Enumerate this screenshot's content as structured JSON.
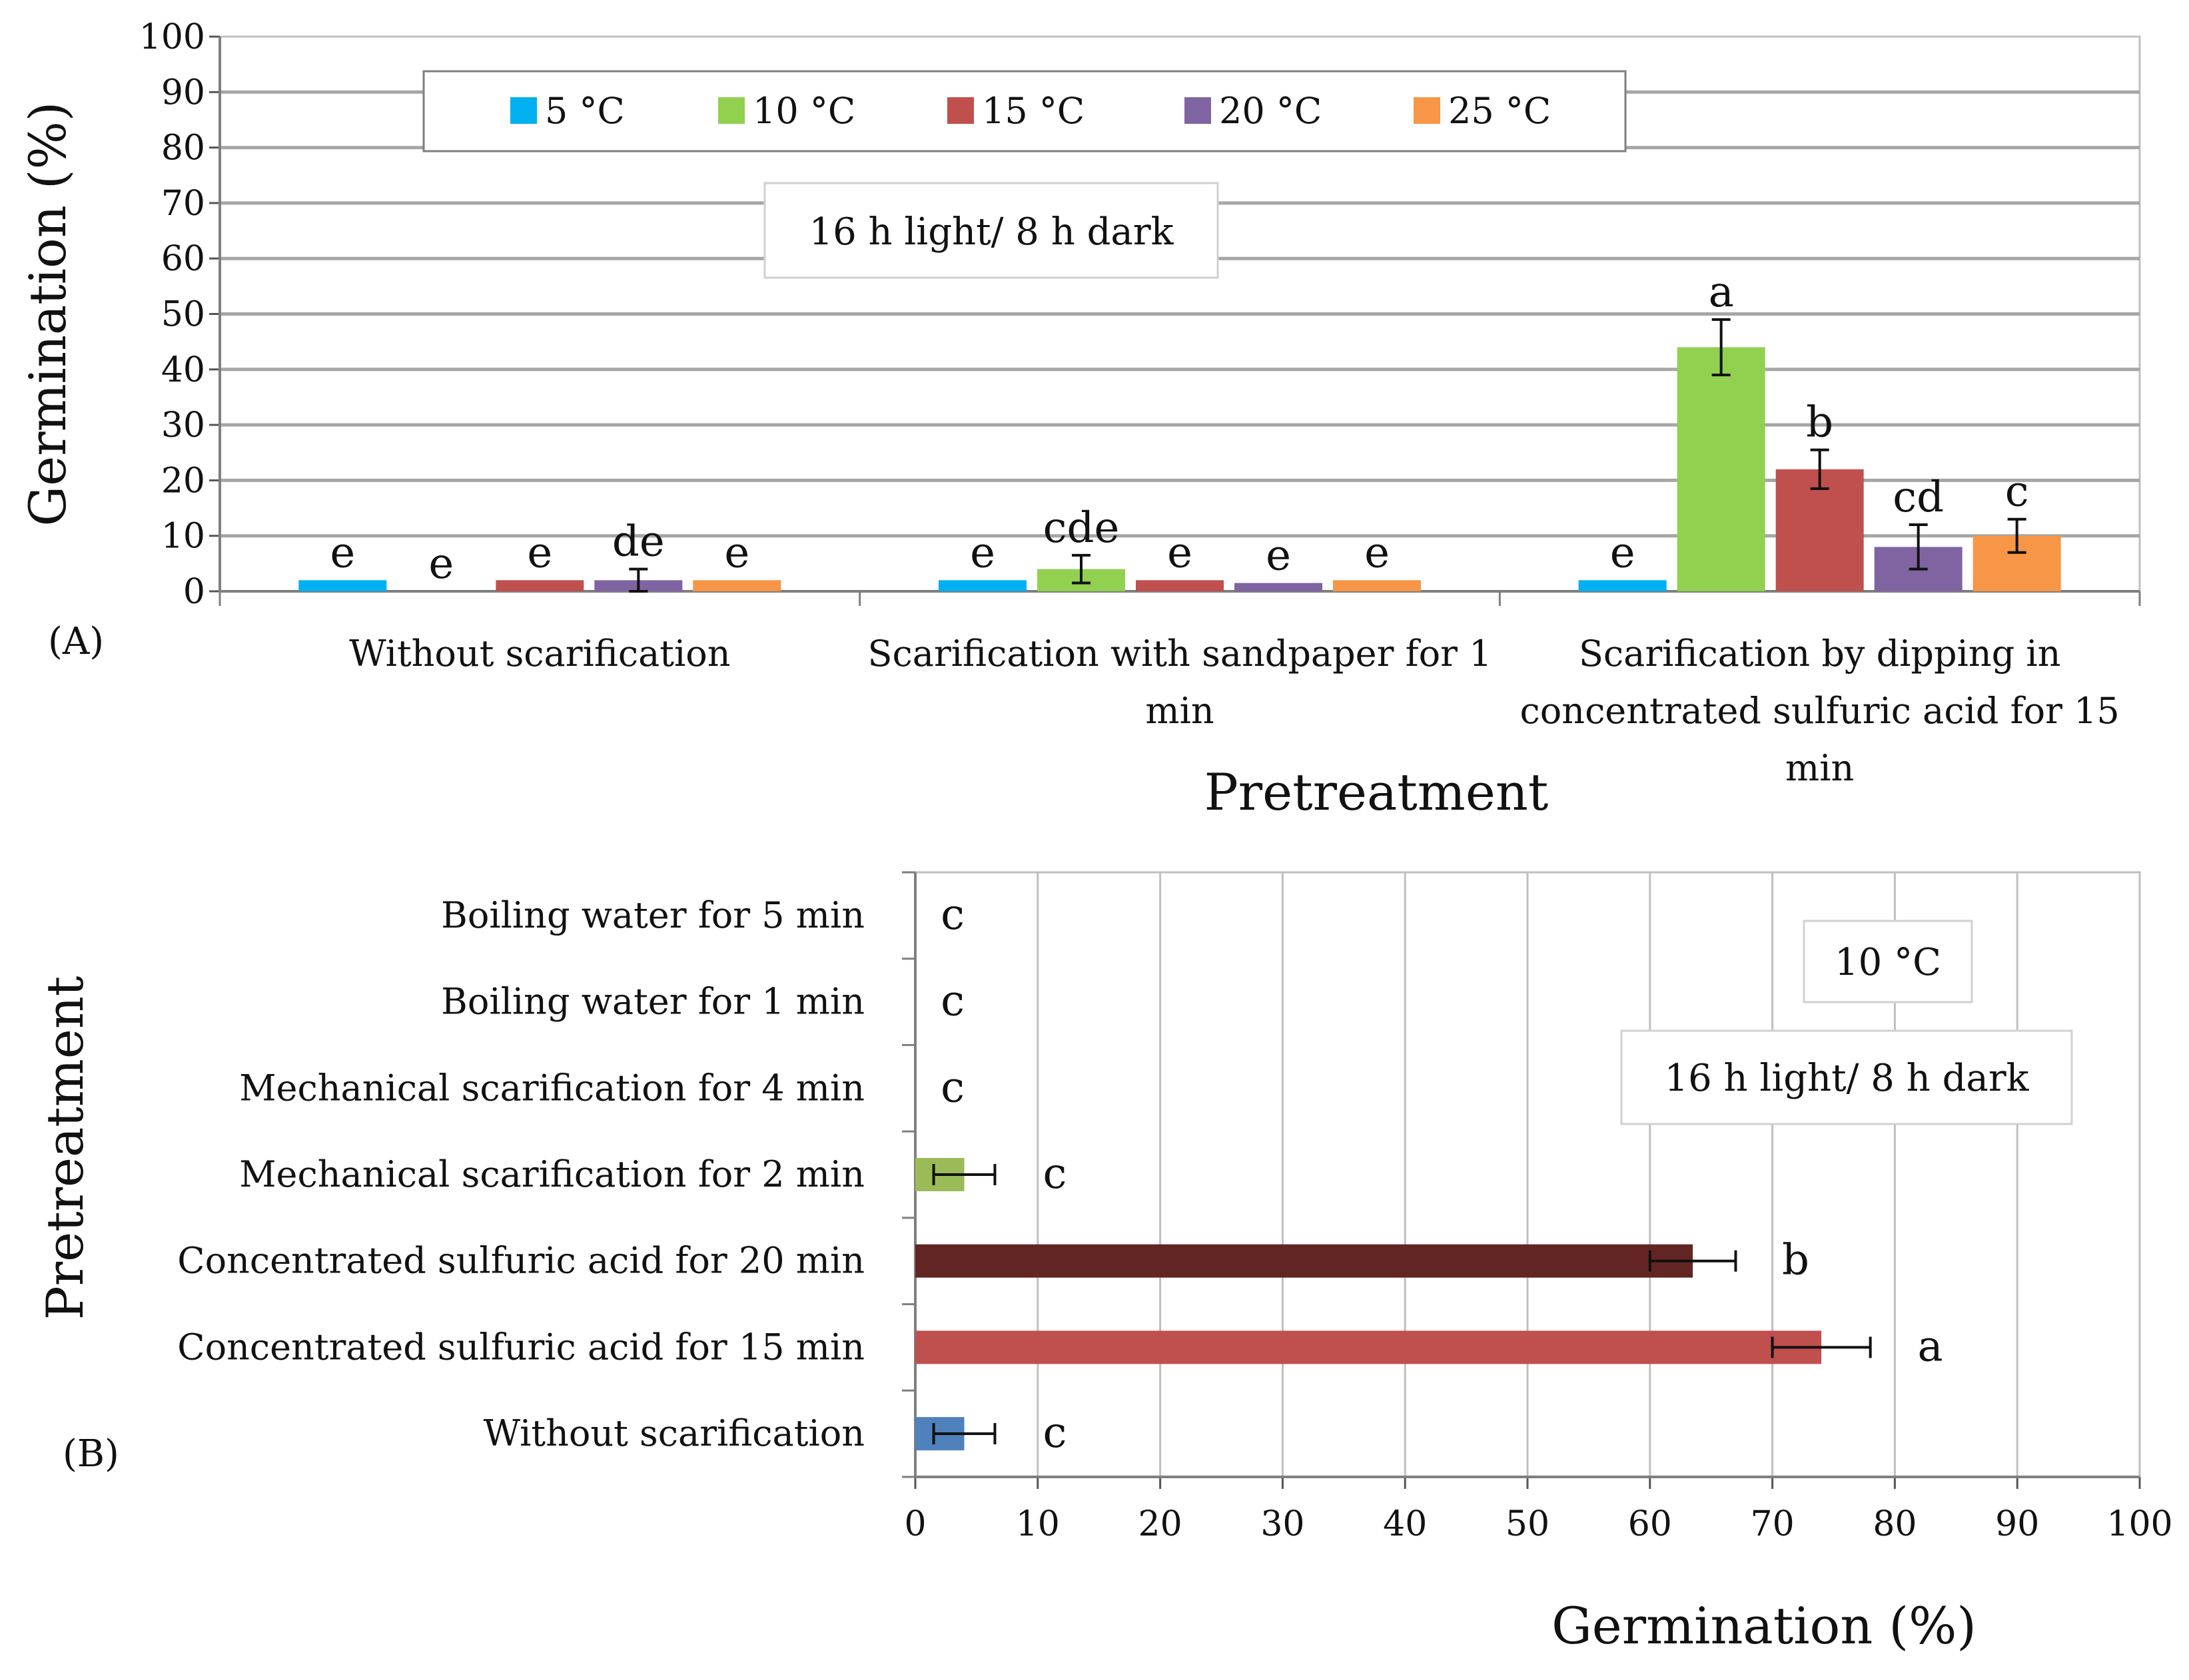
{
  "chart_data": [
    {
      "panel": "(A)",
      "type": "bar",
      "title": "",
      "xlabel": "Pretreatment",
      "ylabel": "Germination (%)",
      "ylim": [
        0,
        100
      ],
      "yticks": [
        "0",
        "10",
        "20",
        "30",
        "40",
        "50",
        "60",
        "70",
        "80",
        "90",
        "100"
      ],
      "grid": true,
      "legend_position": "top",
      "annotation": "16 h light/ 8 h dark",
      "categories": [
        [
          "Without scarification"
        ],
        [
          "Scarification with sandpaper for 1",
          "min"
        ],
        [
          "Scarification by dipping in",
          "concentrated sulfuric acid for 15",
          "min"
        ]
      ],
      "series": [
        {
          "name": "5 °C",
          "color": "#00b0f0",
          "values": [
            2,
            2,
            2
          ],
          "errors": [
            0,
            0,
            0
          ],
          "letters": [
            "e",
            "e",
            "e"
          ]
        },
        {
          "name": "10 °C",
          "color": "#92d050",
          "values": [
            0,
            4,
            44
          ],
          "errors": [
            0,
            2.5,
            5
          ],
          "letters": [
            "e",
            "cde",
            "a"
          ]
        },
        {
          "name": "15 °C",
          "color": "#c0504d",
          "values": [
            2,
            2,
            22
          ],
          "errors": [
            0,
            0,
            3.5
          ],
          "letters": [
            "e",
            "e",
            "b"
          ]
        },
        {
          "name": "20 °C",
          "color": "#8064a2",
          "values": [
            2,
            1.5,
            8
          ],
          "errors": [
            2,
            0,
            4
          ],
          "letters": [
            "de",
            "e",
            "cd"
          ]
        },
        {
          "name": "25 °C",
          "color": "#f79646",
          "values": [
            2,
            2,
            10
          ],
          "errors": [
            0,
            0,
            3
          ],
          "letters": [
            "e",
            "e",
            "c"
          ]
        }
      ]
    },
    {
      "panel": "(B)",
      "type": "bar",
      "orientation": "horizontal",
      "title": "",
      "xlabel": "Germination (%)",
      "ylabel": "Pretreatment",
      "xlim": [
        0,
        100
      ],
      "xticks": [
        "0",
        "10",
        "20",
        "30",
        "40",
        "50",
        "60",
        "70",
        "80",
        "90",
        "100"
      ],
      "grid": true,
      "annotations": [
        "10 °C",
        "16 h light/ 8 h dark"
      ],
      "categories": [
        "Boiling water for 5 min",
        "Boiling water for 1 min",
        "Mechanical scarification for 4 min",
        "Mechanical scarification for 2 min",
        "Concentrated sulfuric acid for 20 min",
        "Concentrated sulfuric acid for 15 min",
        "Without scarification"
      ],
      "values": [
        0,
        0,
        0,
        4,
        63.5,
        74,
        4
      ],
      "errors": [
        0,
        0,
        0,
        2.5,
        3.5,
        4,
        2.5
      ],
      "letters": [
        "c",
        "c",
        "c",
        "c",
        "b",
        "a",
        "c"
      ],
      "colors": [
        "#4f81bd",
        "#4f81bd",
        "#4f81bd",
        "#9bbb59",
        "#632523",
        "#c0504d",
        "#4f81bd"
      ]
    }
  ]
}
